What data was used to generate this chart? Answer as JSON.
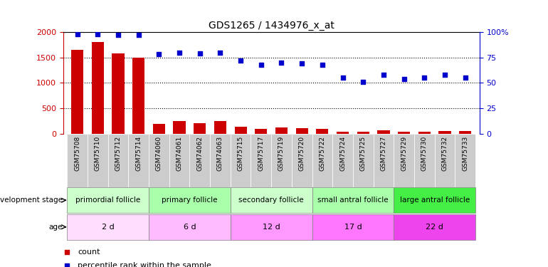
{
  "title": "GDS1265 / 1434976_x_at",
  "samples": [
    "GSM75708",
    "GSM75710",
    "GSM75712",
    "GSM75714",
    "GSM74060",
    "GSM74061",
    "GSM74062",
    "GSM74063",
    "GSM75715",
    "GSM75717",
    "GSM75719",
    "GSM75720",
    "GSM75722",
    "GSM75724",
    "GSM75725",
    "GSM75727",
    "GSM75729",
    "GSM75730",
    "GSM75732",
    "GSM75733"
  ],
  "counts": [
    1650,
    1800,
    1580,
    1500,
    190,
    240,
    200,
    250,
    130,
    90,
    120,
    110,
    90,
    30,
    40,
    60,
    40,
    30,
    50,
    50
  ],
  "percentile_ranks": [
    98,
    98,
    97,
    97,
    78,
    80,
    79,
    80,
    72,
    68,
    70,
    69,
    68,
    55,
    51,
    58,
    54,
    55,
    58,
    55
  ],
  "groups": [
    {
      "label": "primordial follicle",
      "start": 0,
      "end": 4,
      "color": "#ccffcc"
    },
    {
      "label": "primary follicle",
      "start": 4,
      "end": 8,
      "color": "#aaffaa"
    },
    {
      "label": "secondary follicle",
      "start": 8,
      "end": 12,
      "color": "#ccffcc"
    },
    {
      "label": "small antral follicle",
      "start": 12,
      "end": 16,
      "color": "#aaffaa"
    },
    {
      "label": "large antral follicle",
      "start": 16,
      "end": 20,
      "color": "#44ee44"
    }
  ],
  "ages": [
    {
      "label": "2 d",
      "start": 0,
      "end": 4,
      "color": "#ffddff"
    },
    {
      "label": "6 d",
      "start": 4,
      "end": 8,
      "color": "#ffbbff"
    },
    {
      "label": "12 d",
      "start": 8,
      "end": 12,
      "color": "#ff99ff"
    },
    {
      "label": "17 d",
      "start": 12,
      "end": 16,
      "color": "#ff77ff"
    },
    {
      "label": "22 d",
      "start": 16,
      "end": 20,
      "color": "#ee44ee"
    }
  ],
  "ylim_left": [
    0,
    2000
  ],
  "ylim_right": [
    0,
    100
  ],
  "left_ticks": [
    0,
    500,
    1000,
    1500,
    2000
  ],
  "right_ticks": [
    0,
    25,
    50,
    75,
    100
  ],
  "bar_color": "#cc0000",
  "dot_color": "#0000cc",
  "background_color": "#ffffff",
  "tick_bg_color": "#cccccc",
  "legend_count_color": "#cc0000",
  "legend_dot_color": "#0000cc",
  "left_label": "development stage",
  "age_label": "age"
}
